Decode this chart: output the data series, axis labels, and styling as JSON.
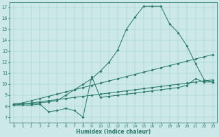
{
  "xlabel": "Humidex (Indice chaleur)",
  "bg_color": "#cce8e8",
  "line_color": "#2a7a6a",
  "grid_color": "#99cccc",
  "xlim": [
    -0.5,
    23.5
  ],
  "ylim": [
    6.5,
    17.5
  ],
  "xticks": [
    0,
    1,
    2,
    3,
    4,
    5,
    6,
    7,
    8,
    9,
    10,
    11,
    12,
    13,
    14,
    15,
    16,
    17,
    18,
    19,
    20,
    21,
    22,
    23
  ],
  "yticks": [
    7,
    8,
    9,
    10,
    11,
    12,
    13,
    14,
    15,
    16,
    17
  ],
  "series": [
    {
      "x": [
        0,
        1,
        2,
        3,
        4,
        5,
        6,
        7,
        8,
        9,
        10,
        11,
        12,
        13,
        14,
        15,
        16,
        17,
        18,
        19,
        20,
        21,
        22,
        23
      ],
      "y": [
        8.2,
        8.2,
        8.2,
        8.3,
        8.4,
        8.5,
        9.0,
        9.5,
        10.0,
        10.5,
        11.2,
        12.0,
        13.1,
        15.0,
        16.1,
        17.1,
        17.1,
        17.1,
        15.5,
        14.7,
        13.5,
        11.9,
        10.4,
        10.2
      ]
    },
    {
      "x": [
        0,
        1,
        2,
        3,
        4,
        5,
        6,
        7,
        8,
        9,
        10,
        11,
        12,
        13,
        14,
        15,
        16,
        17,
        18,
        19,
        20,
        21,
        22,
        23
      ],
      "y": [
        8.2,
        8.3,
        8.5,
        8.7,
        8.9,
        9.1,
        9.3,
        9.5,
        9.7,
        9.9,
        10.1,
        10.3,
        10.5,
        10.7,
        10.9,
        11.1,
        11.3,
        11.5,
        11.7,
        11.9,
        12.1,
        12.3,
        12.5,
        12.7
      ]
    },
    {
      "x": [
        0,
        1,
        2,
        3,
        4,
        5,
        6,
        7,
        8,
        9,
        10,
        11,
        12,
        13,
        14,
        15,
        16,
        17,
        18,
        19,
        20,
        21,
        22,
        23
      ],
      "y": [
        8.1,
        8.2,
        8.3,
        8.4,
        8.5,
        8.6,
        8.7,
        8.8,
        8.9,
        9.0,
        9.1,
        9.2,
        9.3,
        9.4,
        9.5,
        9.6,
        9.7,
        9.8,
        9.9,
        10.0,
        10.1,
        10.2,
        10.3,
        10.4
      ]
    },
    {
      "x": [
        0,
        1,
        2,
        3,
        4,
        5,
        6,
        7,
        8,
        9,
        10,
        11,
        12,
        13,
        14,
        15,
        16,
        17,
        18,
        19,
        20,
        21,
        22,
        23
      ],
      "y": [
        8.1,
        8.1,
        8.1,
        8.2,
        7.5,
        7.6,
        7.8,
        7.6,
        7.0,
        10.7,
        8.8,
        8.9,
        9.0,
        9.1,
        9.2,
        9.3,
        9.4,
        9.5,
        9.6,
        9.7,
        9.9,
        10.5,
        10.2,
        10.2
      ]
    }
  ]
}
